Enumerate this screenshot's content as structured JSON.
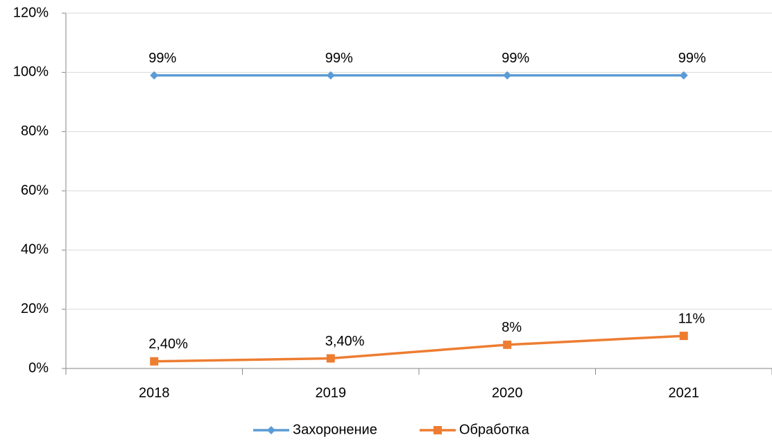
{
  "chart_data": {
    "type": "line",
    "categories": [
      "2018",
      "2019",
      "2020",
      "2021"
    ],
    "series": [
      {
        "name": "Захоронение",
        "color": "#5b9bd5",
        "marker": "diamond",
        "values": [
          99,
          99,
          99,
          99
        ],
        "value_labels": [
          "99%",
          "99%",
          "99%",
          "99%"
        ]
      },
      {
        "name": "Обработка",
        "color": "#ed7d31",
        "marker": "square",
        "values": [
          2.4,
          3.4,
          8,
          11
        ],
        "value_labels": [
          "2,40%",
          "3,40%",
          "8%",
          "11%"
        ]
      }
    ],
    "ylim": [
      0,
      120
    ],
    "yticks": [
      {
        "value": 0,
        "label": "0%"
      },
      {
        "value": 20,
        "label": "20%"
      },
      {
        "value": 40,
        "label": "40%"
      },
      {
        "value": 60,
        "label": "60%"
      },
      {
        "value": 80,
        "label": "80%"
      },
      {
        "value": 100,
        "label": "100%"
      },
      {
        "value": 120,
        "label": "120%"
      }
    ],
    "grid": true,
    "legend": "bottom"
  }
}
